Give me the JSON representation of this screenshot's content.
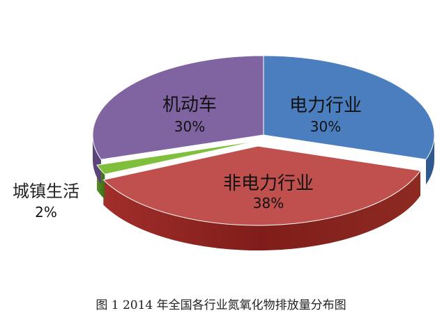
{
  "chart_data": {
    "type": "pie",
    "style": "3d-exploded",
    "categories": [
      "电力行业",
      "非电力行业",
      "城镇生活",
      "机动车"
    ],
    "values": [
      30,
      38,
      2,
      30
    ],
    "value_labels": [
      "30%",
      "38%",
      "2%",
      "30%"
    ],
    "colors": [
      "#4a7ebf",
      "#c0504d",
      "#7fbf3b",
      "#8064a2"
    ],
    "side_colors": [
      "#2f5a8f",
      "#962f2a",
      "#4e7d1e",
      "#5a4579"
    ],
    "legend": "none",
    "title": ""
  },
  "caption": "图 1 2014 年全国各行业氮氧化物排放量分布图"
}
